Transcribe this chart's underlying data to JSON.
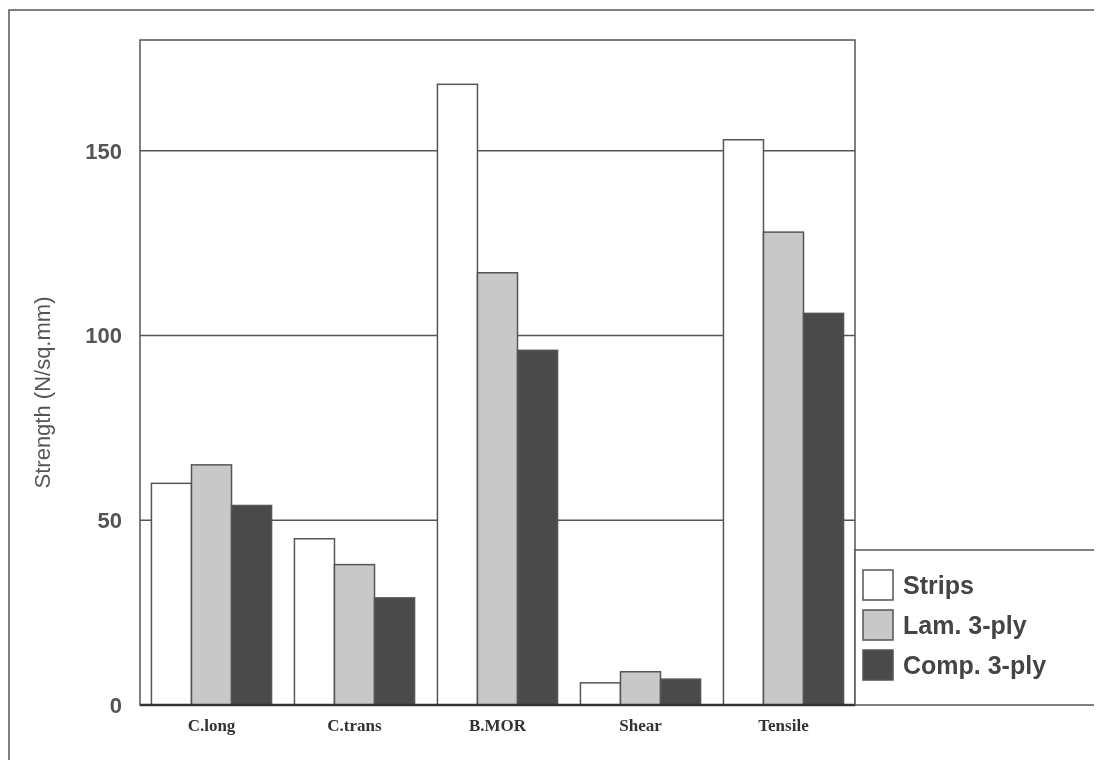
{
  "chart_data": {
    "type": "bar",
    "ylabel": "Strength (N/sq.mm)",
    "categories": [
      "C.long",
      "C.trans",
      "B.MOR",
      "Shear",
      "Tensile"
    ],
    "series": [
      {
        "name": "Strips",
        "color": "#ffffff",
        "values": [
          60,
          45,
          168,
          6,
          153
        ]
      },
      {
        "name": "Lam. 3-ply",
        "color": "#c8c8c8",
        "values": [
          65,
          38,
          117,
          9,
          128
        ]
      },
      {
        "name": "Comp. 3-ply",
        "color": "#4a4a4a",
        "values": [
          54,
          29,
          96,
          7,
          106
        ]
      }
    ],
    "ylim": [
      0,
      180
    ],
    "yticks": [
      0,
      50,
      100,
      150
    ],
    "grid": "y",
    "legend": "bottom right"
  }
}
